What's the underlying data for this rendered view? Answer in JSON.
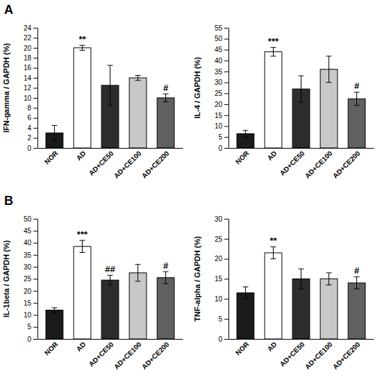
{
  "chart_data": [
    {
      "type": "bar",
      "title": "A",
      "ylabel": "IFN-gamma / GAPDH (%)",
      "categories": [
        "NOR",
        "AD",
        "AD+CE50",
        "AD+CE100",
        "AD+CE200"
      ],
      "values": [
        3.0,
        20.0,
        12.5,
        14.0,
        10.0
      ],
      "errors": [
        1.5,
        0.5,
        4.0,
        0.5,
        0.8
      ],
      "colors": [
        "#1a1a1a",
        "#ffffff",
        "#2d2d2d",
        "#c8c8c8",
        "#606060"
      ],
      "annotations": [
        null,
        "**",
        null,
        null,
        "#"
      ],
      "ylim": [
        0,
        24
      ],
      "yticks": [
        0,
        2,
        4,
        6,
        8,
        10,
        12,
        14,
        16,
        18,
        20,
        22,
        24
      ]
    },
    {
      "type": "bar",
      "ylabel": "IL-4 / GAPDH (%)",
      "categories": [
        "NOR",
        "AD",
        "AD+CE50",
        "AD+CE100",
        "AD+CE200"
      ],
      "values": [
        6.5,
        44.0,
        27.0,
        36.0,
        22.5
      ],
      "errors": [
        1.5,
        2.0,
        6.0,
        6.0,
        3.0
      ],
      "colors": [
        "#1a1a1a",
        "#ffffff",
        "#2d2d2d",
        "#c8c8c8",
        "#606060"
      ],
      "annotations": [
        null,
        "***",
        null,
        null,
        "#"
      ],
      "ylim": [
        0,
        55
      ],
      "yticks": [
        0,
        5,
        10,
        15,
        20,
        25,
        30,
        35,
        40,
        45,
        50,
        55
      ]
    },
    {
      "type": "bar",
      "title": "B",
      "ylabel": "IL-1beta / GAPDH (%)",
      "categories": [
        "NOR",
        "AD",
        "AD+CE50",
        "AD+CE100",
        "AD+CE200"
      ],
      "values": [
        12.0,
        38.5,
        24.5,
        27.5,
        25.5
      ],
      "errors": [
        1.0,
        2.5,
        2.0,
        3.5,
        2.5
      ],
      "colors": [
        "#1a1a1a",
        "#ffffff",
        "#2d2d2d",
        "#c8c8c8",
        "#606060"
      ],
      "annotations": [
        null,
        "***",
        "##",
        null,
        "#"
      ],
      "ylim": [
        0,
        50
      ],
      "yticks": [
        0,
        5,
        10,
        15,
        20,
        25,
        30,
        35,
        40,
        45,
        50
      ]
    },
    {
      "type": "bar",
      "ylabel": "TNF-alpha / GAPDH (%)",
      "categories": [
        "NOR",
        "AD",
        "AD+CE50",
        "AD+CE100",
        "AD+CE200"
      ],
      "values": [
        11.5,
        21.5,
        15.0,
        15.0,
        14.0
      ],
      "errors": [
        1.5,
        1.5,
        2.5,
        1.5,
        1.5
      ],
      "colors": [
        "#1a1a1a",
        "#ffffff",
        "#2d2d2d",
        "#c8c8c8",
        "#606060"
      ],
      "annotations": [
        null,
        "**",
        null,
        null,
        "#"
      ],
      "ylim": [
        0,
        30
      ],
      "yticks": [
        0,
        5,
        10,
        15,
        20,
        25,
        30
      ]
    }
  ]
}
